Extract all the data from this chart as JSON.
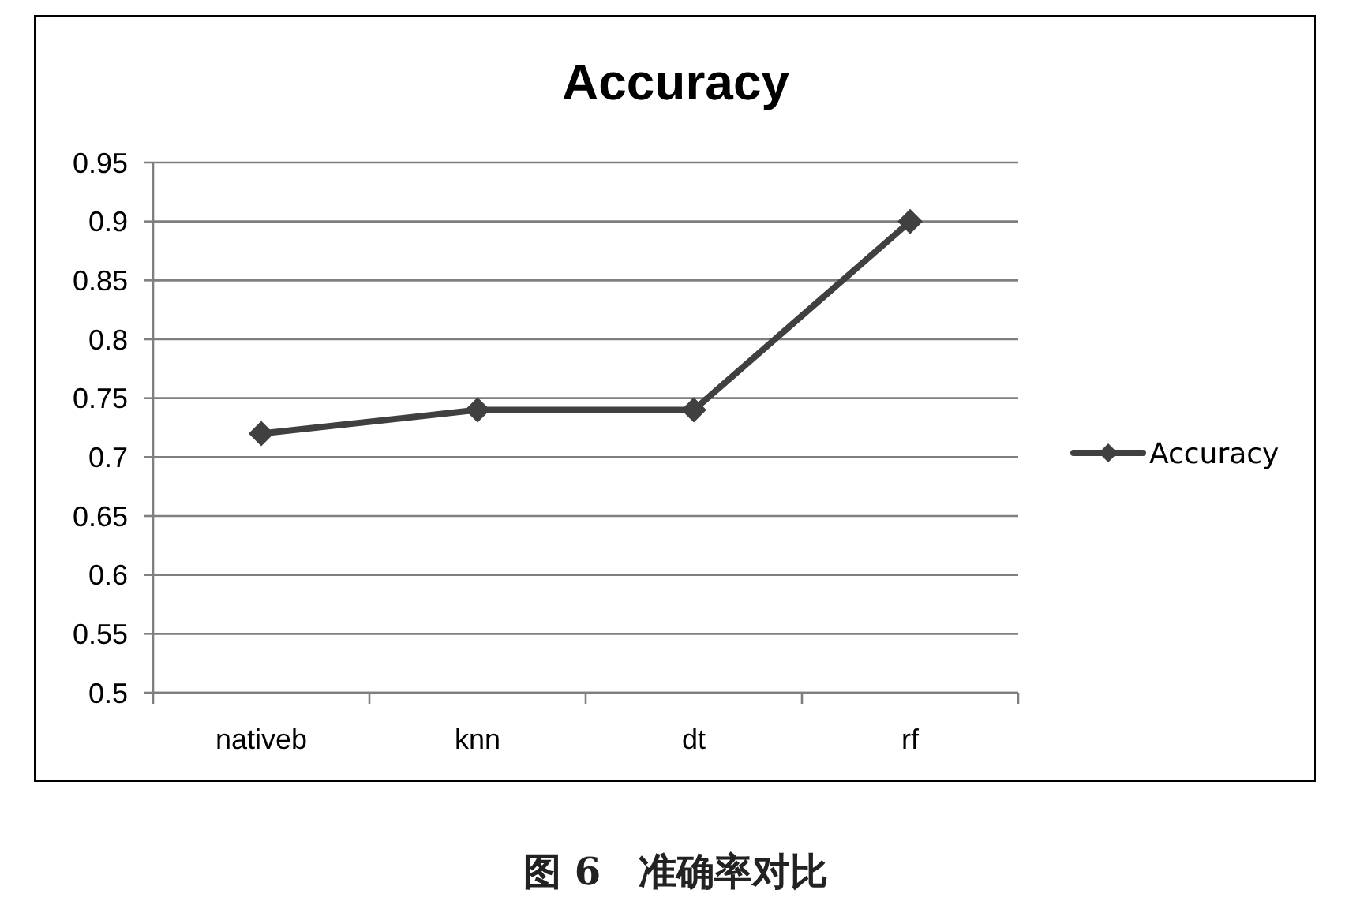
{
  "chart_data": {
    "type": "line",
    "title": "Accuracy",
    "categories": [
      "nativeb",
      "knn",
      "dt",
      "rf"
    ],
    "series": [
      {
        "name": "Accuracy",
        "color": "#404040",
        "values": [
          0.72,
          0.74,
          0.74,
          0.9
        ]
      }
    ],
    "ylim": [
      0.5,
      0.95
    ],
    "yticks": [
      {
        "value": 0.5,
        "label": "0.5"
      },
      0.55,
      {
        "value": 0.6,
        "label": "0.6"
      },
      0.65,
      {
        "value": 0.7,
        "label": "0.7"
      },
      0.75,
      {
        "value": 0.8,
        "label": "0.8"
      },
      0.85,
      {
        "value": 0.9,
        "label": "0.9"
      },
      0.95
    ],
    "grid": "y",
    "legend": "right",
    "marker": "diamond",
    "line_style": "solid",
    "annotations": [
      "图 6　准确率对比"
    ]
  }
}
